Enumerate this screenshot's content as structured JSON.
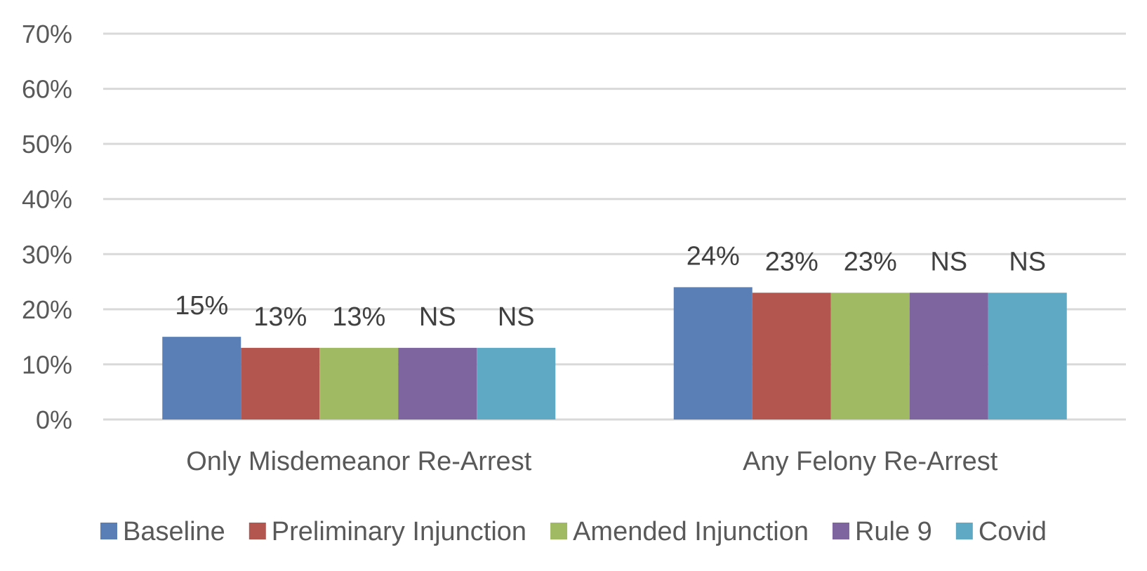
{
  "chart_data": {
    "type": "bar",
    "categories": [
      "Only Misdemeanor Re-Arrest",
      "Any Felony Re-Arrest"
    ],
    "series": [
      {
        "name": "Baseline",
        "values": [
          15,
          24
        ],
        "labels": [
          "15%",
          "24%"
        ],
        "color": "#5A7FB6"
      },
      {
        "name": "Preliminary Injunction",
        "values": [
          13,
          23
        ],
        "labels": [
          "13%",
          "23%"
        ],
        "color": "#B45650"
      },
      {
        "name": "Amended Injunction",
        "values": [
          13,
          23
        ],
        "labels": [
          "13%",
          "23%"
        ],
        "color": "#9FBA62"
      },
      {
        "name": "Rule 9",
        "values": [
          13,
          23
        ],
        "labels": [
          "NS",
          "NS"
        ],
        "color": "#7E659F"
      },
      {
        "name": "Covid",
        "values": [
          13,
          23
        ],
        "labels": [
          "NS",
          "NS"
        ],
        "color": "#5FA9C4"
      }
    ],
    "y_ticks": [
      "0%",
      "10%",
      "20%",
      "30%",
      "40%",
      "50%",
      "60%",
      "70%"
    ],
    "ylim": [
      0,
      70
    ],
    "title": "",
    "xlabel": "",
    "ylabel": "",
    "grid": true,
    "legend_position": "bottom"
  }
}
